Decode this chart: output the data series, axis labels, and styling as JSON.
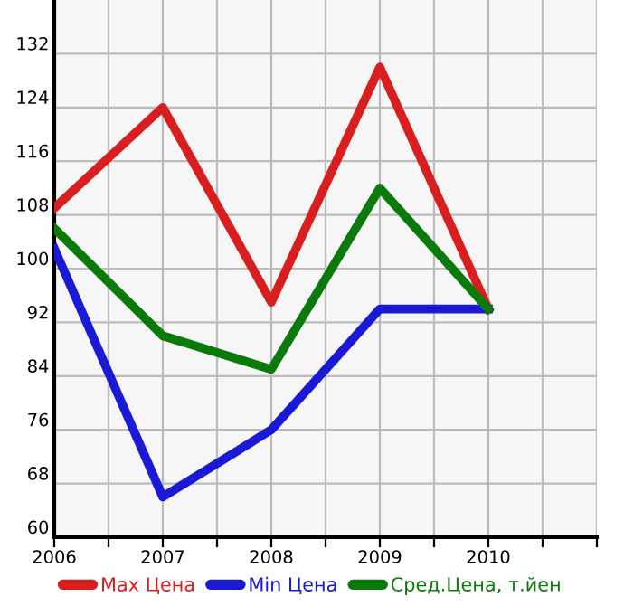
{
  "chart_data": {
    "type": "line",
    "x": [
      2006,
      2007,
      2008,
      2009,
      2010
    ],
    "series": [
      {
        "name": "Max Цена",
        "color": "#d81e1e",
        "values": [
          109,
          124,
          95,
          130,
          94
        ]
      },
      {
        "name": "Min Цена",
        "color": "#1a1ad6",
        "values": [
          103,
          66,
          76,
          94,
          94
        ]
      },
      {
        "name": "Сред.Цена, т.йен",
        "color": "#0a7a0a",
        "values": [
          106,
          90,
          85,
          112,
          94
        ]
      }
    ],
    "xlim": [
      2006,
      2011
    ],
    "xticks": [
      2006,
      {
        "value": 2006.5,
        "label": null
      },
      2007,
      {
        "value": 2007.5,
        "label": null
      },
      2008,
      {
        "value": 2008.5,
        "label": null
      },
      2009,
      {
        "value": 2009.5,
        "label": null
      },
      2010,
      {
        "value": 2010.5,
        "label": null
      },
      {
        "value": 2011,
        "label": null
      }
    ],
    "ylim": [
      60,
      140
    ],
    "yticks": [
      60,
      68,
      76,
      84,
      92,
      100,
      108,
      116,
      124,
      132
    ],
    "grid": true,
    "legend": "bottom",
    "marker": "none",
    "line_style": "solid"
  }
}
